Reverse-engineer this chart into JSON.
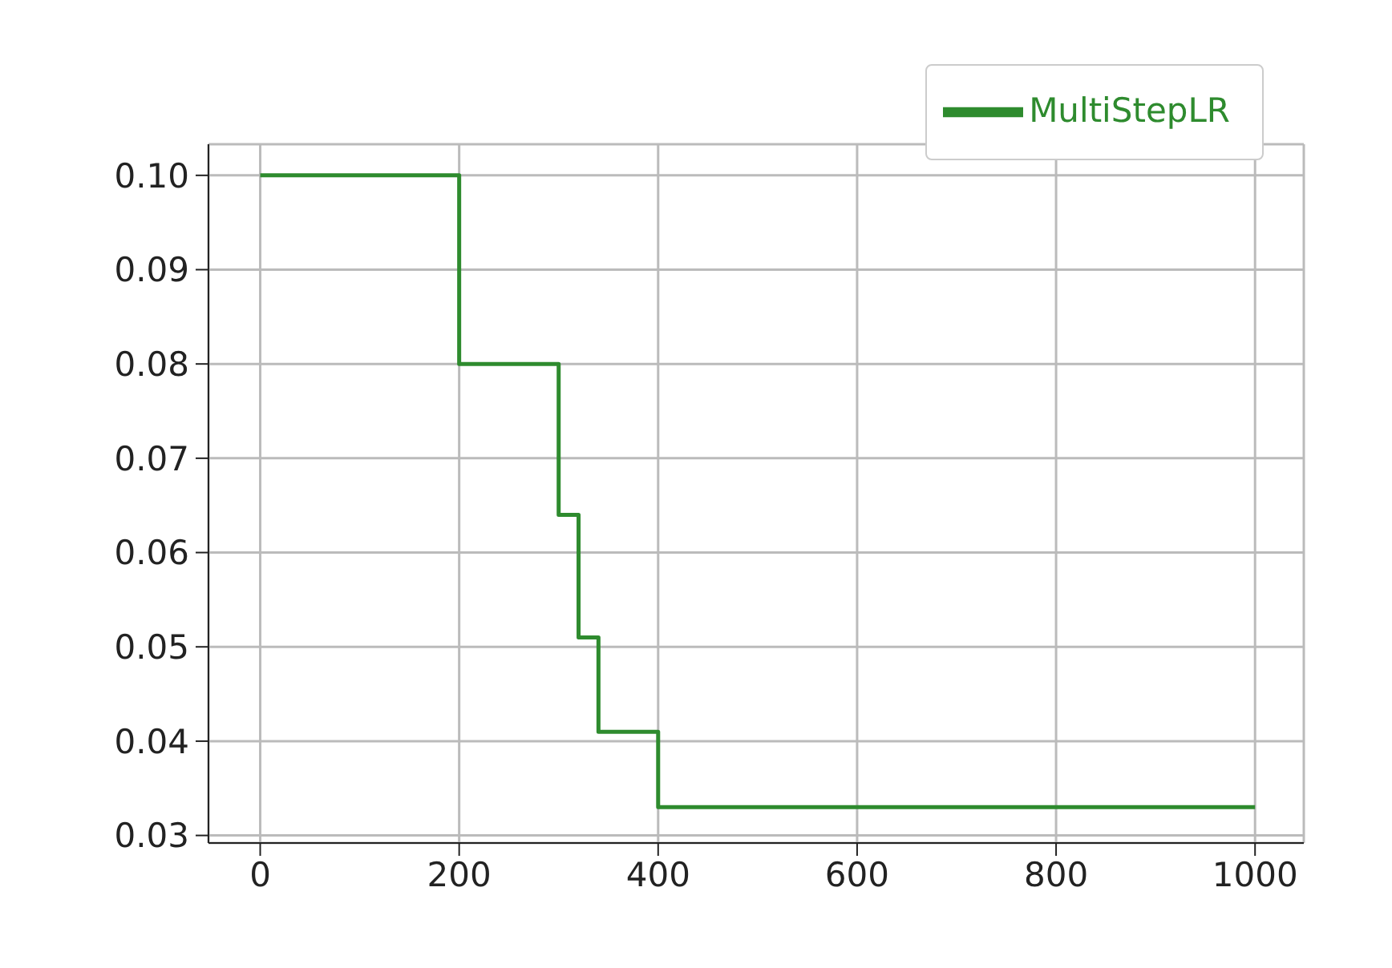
{
  "chart_data": {
    "type": "step",
    "x": [
      0,
      200,
      300,
      320,
      340,
      400,
      1000
    ],
    "series": [
      {
        "name": "MultiStepLR",
        "color": "#2e8b2e",
        "values": [
          0.1,
          0.08,
          0.064,
          0.051,
          0.041,
          0.033,
          0.033
        ]
      }
    ],
    "xlim": [
      -52,
      1049
    ],
    "xticks": [
      0,
      200,
      400,
      600,
      800,
      1000
    ],
    "ylim": [
      0.0292,
      0.1033
    ],
    "yticks": [
      {
        "value": 0.03,
        "label": "0.03"
      },
      {
        "value": 0.04,
        "label": "0.04"
      },
      {
        "value": 0.05,
        "label": "0.05"
      },
      {
        "value": 0.06,
        "label": "0.06"
      },
      {
        "value": 0.07,
        "label": "0.07"
      },
      {
        "value": 0.08,
        "label": "0.08"
      },
      {
        "value": 0.09,
        "label": "0.09"
      },
      {
        "value": 0.1,
        "label": "0.10"
      }
    ],
    "grid": true,
    "legend": "top right"
  }
}
